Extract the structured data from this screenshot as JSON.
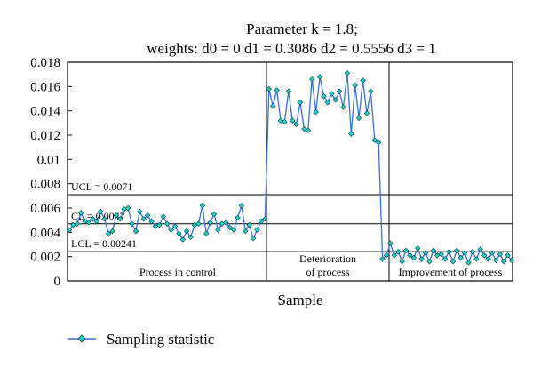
{
  "chart_data": {
    "type": "line",
    "title_line1": "Parameter k = 1.8;",
    "title_line2": "weights: d0 = 0  d1 = 0.3086  d2 = 0.5556  d3 = 1",
    "xlabel": "Sample",
    "ylabel": "",
    "ylim": [
      0,
      0.018
    ],
    "yticks": [
      {
        "value": 0,
        "label": "0"
      },
      {
        "value": 0.002,
        "label": "0.002"
      },
      {
        "value": 0.004,
        "label": "0.004"
      },
      {
        "value": 0.006,
        "label": "0.006"
      },
      {
        "value": 0.008,
        "label": "0.008"
      },
      {
        "value": 0.01,
        "label": "0.01"
      },
      {
        "value": 0.012,
        "label": "0.012"
      },
      {
        "value": 0.014,
        "label": "0.014"
      },
      {
        "value": 0.016,
        "label": "0.016"
      },
      {
        "value": 0.018,
        "label": "0.018"
      }
    ],
    "control_limits": [
      {
        "label": "UCL = 0.0071",
        "value": 0.0071
      },
      {
        "label": "CL = 0.0047",
        "value": 0.0047
      },
      {
        "label": "LCL = 0.00241",
        "value": 0.00241
      }
    ],
    "regions": [
      {
        "label": "Process in control",
        "start": 1,
        "end": 50
      },
      {
        "label": "Deterioration of process",
        "start": 50,
        "end": 70
      },
      {
        "label": "Improvement of process",
        "start": 70,
        "end": 92
      }
    ],
    "legend": "Sampling statistic",
    "colors": {
      "line": "#3a6fd8",
      "marker": "#19d3d3",
      "marker_edge": "#0a3a3a"
    },
    "series": [
      {
        "name": "Sampling statistic",
        "values": [
          0.0042,
          0.0046,
          0.0047,
          0.0056,
          0.0049,
          0.0048,
          0.0051,
          0.0049,
          0.0057,
          0.0051,
          0.0039,
          0.0041,
          0.0054,
          0.0051,
          0.0059,
          0.006,
          0.0047,
          0.0041,
          0.0057,
          0.0051,
          0.0054,
          0.0049,
          0.0045,
          0.0046,
          0.0053,
          0.0047,
          0.0042,
          0.0045,
          0.0039,
          0.0034,
          0.0041,
          0.0036,
          0.0046,
          0.0047,
          0.0062,
          0.0039,
          0.0048,
          0.0055,
          0.0042,
          0.0047,
          0.0048,
          0.0044,
          0.0042,
          0.0052,
          0.0062,
          0.0041,
          0.0046,
          0.0035,
          0.0042,
          0.0049,
          0.0051,
          0.0158,
          0.0144,
          0.0157,
          0.0132,
          0.0131,
          0.0156,
          0.0132,
          0.0129,
          0.0147,
          0.0125,
          0.0124,
          0.0166,
          0.0139,
          0.0168,
          0.0152,
          0.0147,
          0.0154,
          0.0149,
          0.0156,
          0.0143,
          0.0171,
          0.0121,
          0.0161,
          0.0134,
          0.0165,
          0.0138,
          0.0156,
          0.0116,
          0.0114,
          0.0018,
          0.0021,
          0.0031,
          0.0021,
          0.0024,
          0.0016,
          0.0025,
          0.0021,
          0.0019,
          0.0027,
          0.0018,
          0.0023,
          0.0016,
          0.0025,
          0.0021,
          0.0022,
          0.0018,
          0.0024,
          0.0016,
          0.0025,
          0.0019,
          0.0023,
          0.0015,
          0.0024,
          0.0018,
          0.0026,
          0.0021,
          0.0018,
          0.0023,
          0.0017,
          0.0022,
          0.0016,
          0.0021,
          0.0017
        ]
      }
    ]
  }
}
